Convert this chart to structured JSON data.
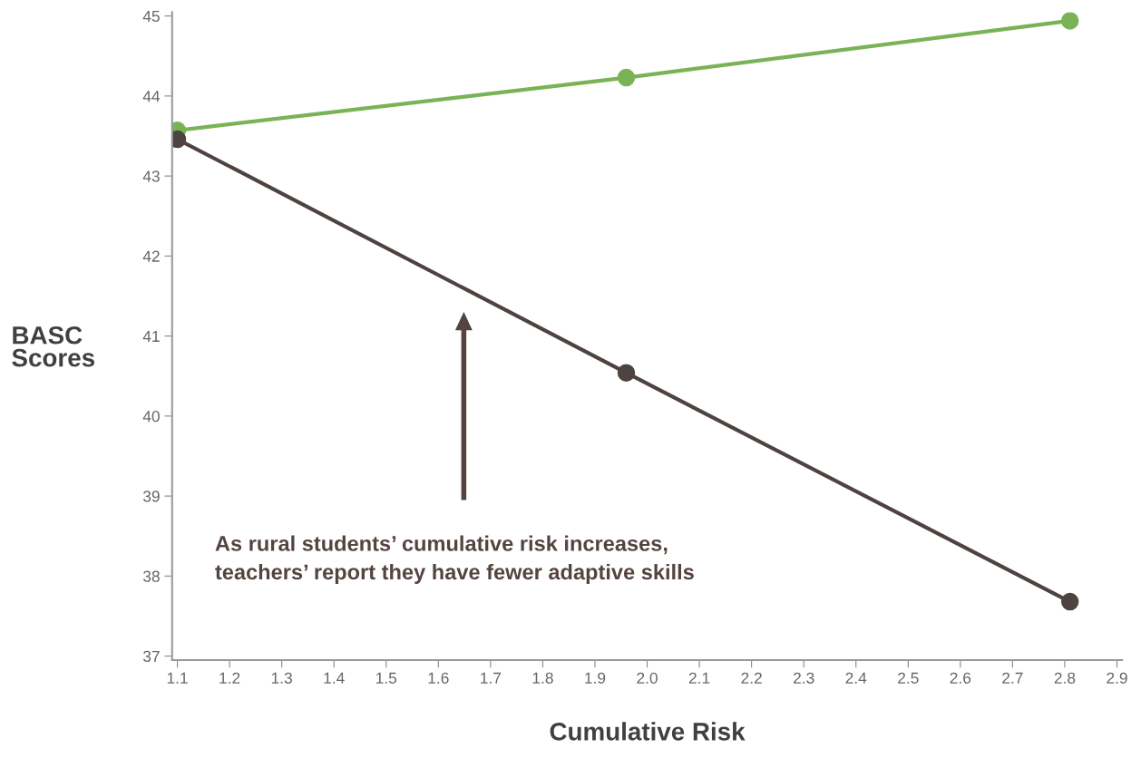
{
  "chart_data": {
    "type": "line",
    "xlabel": "Cumulative Risk",
    "ylabel": "BASC\nScores",
    "x": [
      1.1,
      1.96,
      2.81
    ],
    "series": [
      {
        "color": "#7ab356",
        "values": [
          43.57,
          44.23,
          44.94
        ]
      },
      {
        "color": "#4e4340",
        "values": [
          43.46,
          40.54,
          37.68
        ]
      }
    ],
    "xlim": [
      1.09,
      2.91
    ],
    "xticks": [
      {
        "value": 1.1,
        "label": "1.1"
      },
      {
        "value": 1.2,
        "label": "1.2"
      },
      {
        "value": 1.3,
        "label": "1.3"
      },
      {
        "value": 1.4,
        "label": "1.4"
      },
      {
        "value": 1.5,
        "label": "1.5"
      },
      {
        "value": 1.6,
        "label": "1.6"
      },
      {
        "value": 1.7,
        "label": "1.7"
      },
      {
        "value": 1.8,
        "label": "1.8"
      },
      {
        "value": 1.9,
        "label": "1.9"
      },
      {
        "value": 2.0,
        "label": "2.0"
      },
      {
        "value": 2.1,
        "label": "2.1"
      },
      {
        "value": 2.2,
        "label": "2.2"
      },
      {
        "value": 2.3,
        "label": "2.3"
      },
      {
        "value": 2.4,
        "label": "2.4"
      },
      {
        "value": 2.5,
        "label": "2.5"
      },
      {
        "value": 2.6,
        "label": "2.6"
      },
      {
        "value": 2.7,
        "label": "2.7"
      },
      {
        "value": 2.8,
        "label": "2.8"
      },
      {
        "value": 2.9,
        "label": "2.9"
      }
    ],
    "ylim": [
      36.95,
      45.05
    ],
    "yticks": [
      37,
      38,
      39,
      40,
      41,
      42,
      43,
      44,
      45
    ],
    "annotations": [
      "As rural students’ cumulative risk increases,\nteachers’ report they have fewer adaptive skills"
    ],
    "grid": false,
    "legend": false,
    "marker": "circle",
    "line_style": "solid"
  }
}
